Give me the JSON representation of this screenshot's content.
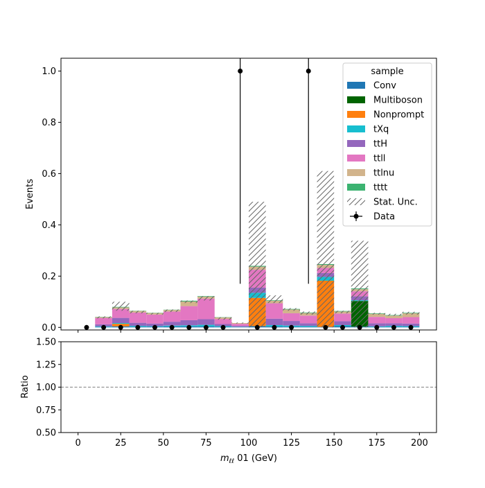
{
  "chart_data": [
    {
      "type": "bar",
      "stacked": true,
      "xlabel": "m_ℓℓ 01 (GeV)",
      "xlabel_parts": {
        "main": "m",
        "sub": "ℓℓ",
        "rest": " 01 (GeV)"
      },
      "ylabel": "Events",
      "xlim": [
        -10,
        210
      ],
      "ylim": [
        -0.01,
        1.05
      ],
      "xticks": [
        0,
        25,
        50,
        75,
        100,
        125,
        150,
        175,
        200
      ],
      "yticks": [
        0.0,
        0.2,
        0.4,
        0.6,
        0.8,
        1.0
      ],
      "xtick_labels": [
        "0",
        "25",
        "50",
        "75",
        "100",
        "125",
        "150",
        "175",
        "200"
      ],
      "ytick_labels": [
        "0.0",
        "0.2",
        "0.4",
        "0.6",
        "0.8",
        "1.0"
      ],
      "bin_edges": [
        0,
        10,
        20,
        30,
        40,
        50,
        60,
        70,
        80,
        90,
        100,
        110,
        120,
        130,
        140,
        150,
        160,
        170,
        180,
        190,
        200
      ],
      "legend": {
        "title": "sample",
        "position": "upper right"
      },
      "series": [
        {
          "name": "Conv",
          "color": "#1f77b4",
          "values": [
            0,
            0.002,
            0.004,
            0.003,
            0.003,
            0.004,
            0.004,
            0.004,
            0.002,
            0.001,
            0.005,
            0.004,
            0.003,
            0.003,
            0.002,
            0.005,
            0.003,
            0.002,
            0.003,
            0.002
          ]
        },
        {
          "name": "Multiboson",
          "color": "#006400",
          "values": [
            0,
            0.0,
            0.0,
            0.0,
            0.0,
            0.0,
            0.0,
            0.0,
            0.0,
            0.0,
            0.0,
            0.0,
            0.0,
            0.0,
            0.0,
            0.0,
            0.1,
            0.0,
            0.0,
            0.0
          ]
        },
        {
          "name": "Nonprompt",
          "color": "#ff7f0e",
          "values": [
            0,
            0.0,
            0.01,
            0.0,
            0.0,
            0.0,
            0.0,
            0.0,
            0.0,
            0.0,
            0.11,
            0.0,
            0.0,
            0.0,
            0.18,
            0.0,
            0.0,
            0.0,
            0.0,
            0.0
          ]
        },
        {
          "name": "tXq",
          "color": "#17becf",
          "values": [
            0,
            0.002,
            0.003,
            0.003,
            0.002,
            0.003,
            0.004,
            0.006,
            0.003,
            0.001,
            0.02,
            0.005,
            0.004,
            0.003,
            0.015,
            0.004,
            0.003,
            0.002,
            0.003,
            0.003
          ]
        },
        {
          "name": "ttH",
          "color": "#9467bd",
          "values": [
            0,
            0.008,
            0.02,
            0.012,
            0.01,
            0.015,
            0.02,
            0.022,
            0.008,
            0.004,
            0.02,
            0.025,
            0.018,
            0.01,
            0.015,
            0.015,
            0.015,
            0.012,
            0.01,
            0.01
          ]
        },
        {
          "name": "ttll",
          "color": "#e377c2",
          "values": [
            0,
            0.025,
            0.035,
            0.04,
            0.035,
            0.04,
            0.055,
            0.08,
            0.02,
            0.008,
            0.07,
            0.06,
            0.03,
            0.03,
            0.02,
            0.03,
            0.02,
            0.025,
            0.02,
            0.025
          ]
        },
        {
          "name": "ttlnu",
          "color": "#d2b48c",
          "values": [
            0,
            0.003,
            0.006,
            0.006,
            0.006,
            0.006,
            0.018,
            0.008,
            0.006,
            0.003,
            0.012,
            0.01,
            0.015,
            0.01,
            0.012,
            0.008,
            0.008,
            0.012,
            0.01,
            0.015
          ]
        },
        {
          "name": "tttt",
          "color": "#3cb371",
          "values": [
            0,
            0.001,
            0.002,
            0.001,
            0.001,
            0.001,
            0.003,
            0.002,
            0.001,
            0.0,
            0.003,
            0.002,
            0.002,
            0.002,
            0.003,
            0.002,
            0.003,
            0.002,
            0.002,
            0.002
          ]
        }
      ],
      "stat_unc": {
        "name": "Stat. Unc.",
        "low": [
          0,
          0.035,
          0.065,
          0.055,
          0.05,
          0.06,
          0.095,
          0.105,
          0.03,
          0.015,
          0.0,
          0.095,
          0.065,
          0.05,
          0.0,
          0.055,
          0.0,
          0.05,
          0.045,
          0.05
        ],
        "high": [
          0,
          0.043,
          0.1,
          0.065,
          0.057,
          0.07,
          0.105,
          0.122,
          0.04,
          0.019,
          0.49,
          0.125,
          0.075,
          0.062,
          0.61,
          0.065,
          0.338,
          0.057,
          0.053,
          0.061
        ]
      },
      "data": {
        "name": "Data",
        "x": [
          5,
          15,
          25,
          35,
          45,
          55,
          65,
          75,
          85,
          95,
          105,
          115,
          125,
          135,
          145,
          155,
          165,
          175,
          185,
          195
        ],
        "y": [
          0,
          0,
          0,
          0,
          0,
          0,
          0,
          0,
          0,
          1,
          0,
          0,
          0,
          1,
          0,
          0,
          0,
          0,
          0,
          0
        ],
        "err_up": [
          0,
          0,
          0,
          0,
          0,
          0,
          0,
          0,
          0,
          1.8,
          0,
          0,
          0,
          1.8,
          0,
          0,
          0,
          0,
          0,
          0
        ],
        "err_down": [
          0,
          0,
          0,
          0,
          0,
          0,
          0,
          0,
          0,
          0.83,
          0,
          0,
          0,
          0.83,
          0,
          0,
          0,
          0,
          0,
          0
        ]
      }
    },
    {
      "type": "line",
      "ylabel": "Ratio",
      "xlim": [
        -10,
        210
      ],
      "ylim": [
        0.5,
        1.5
      ],
      "xticks": [
        0,
        25,
        50,
        75,
        100,
        125,
        150,
        175,
        200
      ],
      "yticks": [
        0.5,
        0.75,
        1.0,
        1.25,
        1.5
      ],
      "ytick_labels": [
        "0.50",
        "0.75",
        "1.00",
        "1.25",
        "1.50"
      ],
      "reference_line": 1.0
    }
  ]
}
